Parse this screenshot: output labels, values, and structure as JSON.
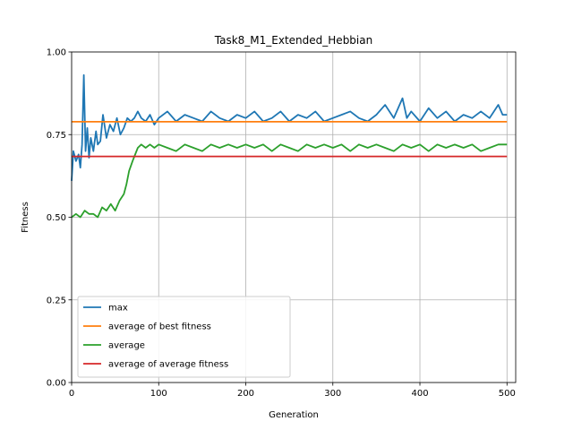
{
  "chart_data": {
    "type": "line",
    "title": "Task8_M1_Extended_Hebbian",
    "xlabel": "Generation",
    "ylabel": "Fitness",
    "xlim": [
      0,
      510
    ],
    "ylim": [
      0.0,
      1.0
    ],
    "x_ticks": [
      0,
      100,
      200,
      300,
      400,
      500
    ],
    "y_ticks": [
      0.0,
      0.25,
      0.5,
      0.75,
      1.0
    ],
    "x_tick_labels": [
      "0",
      "100",
      "200",
      "300",
      "400",
      "500"
    ],
    "y_tick_labels": [
      "0.00",
      "0.25",
      "0.50",
      "0.75",
      "1.00"
    ],
    "grid": true,
    "legend_position": "lower-left",
    "series": [
      {
        "name": "max",
        "color": "#1f77b4",
        "x": [
          0,
          2,
          5,
          8,
          10,
          12,
          14,
          16,
          18,
          20,
          22,
          25,
          28,
          30,
          33,
          36,
          40,
          44,
          48,
          52,
          56,
          60,
          64,
          68,
          72,
          76,
          80,
          85,
          90,
          95,
          100,
          110,
          120,
          130,
          140,
          150,
          160,
          170,
          180,
          190,
          200,
          210,
          220,
          230,
          240,
          250,
          260,
          270,
          280,
          290,
          300,
          310,
          320,
          330,
          340,
          350,
          360,
          370,
          380,
          385,
          390,
          400,
          410,
          420,
          430,
          440,
          450,
          460,
          470,
          480,
          490,
          495,
          500
        ],
        "values": [
          0.61,
          0.7,
          0.67,
          0.69,
          0.65,
          0.72,
          0.93,
          0.7,
          0.77,
          0.68,
          0.74,
          0.7,
          0.76,
          0.72,
          0.73,
          0.81,
          0.74,
          0.78,
          0.76,
          0.8,
          0.75,
          0.77,
          0.8,
          0.79,
          0.8,
          0.82,
          0.8,
          0.79,
          0.81,
          0.78,
          0.8,
          0.82,
          0.79,
          0.81,
          0.8,
          0.79,
          0.82,
          0.8,
          0.79,
          0.81,
          0.8,
          0.82,
          0.79,
          0.8,
          0.82,
          0.79,
          0.81,
          0.8,
          0.82,
          0.79,
          0.8,
          0.81,
          0.82,
          0.8,
          0.79,
          0.81,
          0.84,
          0.8,
          0.86,
          0.8,
          0.82,
          0.79,
          0.83,
          0.8,
          0.82,
          0.79,
          0.81,
          0.8,
          0.82,
          0.8,
          0.84,
          0.81,
          0.81
        ]
      },
      {
        "name": "average of best fitness",
        "color": "#ff7f0e",
        "x": [
          0,
          500
        ],
        "values": [
          0.789,
          0.789
        ]
      },
      {
        "name": "average",
        "color": "#2ca02c",
        "x": [
          0,
          5,
          10,
          15,
          20,
          25,
          30,
          35,
          40,
          45,
          50,
          55,
          60,
          63,
          66,
          70,
          73,
          76,
          80,
          85,
          90,
          95,
          100,
          110,
          120,
          130,
          140,
          150,
          160,
          170,
          180,
          190,
          200,
          210,
          220,
          230,
          240,
          250,
          260,
          270,
          280,
          290,
          300,
          310,
          320,
          330,
          340,
          350,
          360,
          370,
          380,
          390,
          400,
          410,
          420,
          430,
          440,
          450,
          460,
          470,
          480,
          490,
          500
        ],
        "values": [
          0.5,
          0.51,
          0.5,
          0.52,
          0.51,
          0.51,
          0.5,
          0.53,
          0.52,
          0.54,
          0.52,
          0.55,
          0.57,
          0.6,
          0.64,
          0.67,
          0.69,
          0.71,
          0.72,
          0.71,
          0.72,
          0.71,
          0.72,
          0.71,
          0.7,
          0.72,
          0.71,
          0.7,
          0.72,
          0.71,
          0.72,
          0.71,
          0.72,
          0.71,
          0.72,
          0.7,
          0.72,
          0.71,
          0.7,
          0.72,
          0.71,
          0.72,
          0.71,
          0.72,
          0.7,
          0.72,
          0.71,
          0.72,
          0.71,
          0.7,
          0.72,
          0.71,
          0.72,
          0.7,
          0.72,
          0.71,
          0.72,
          0.71,
          0.72,
          0.7,
          0.71,
          0.72,
          0.72
        ]
      },
      {
        "name": "average of average fitness",
        "color": "#d62728",
        "x": [
          0,
          500
        ],
        "values": [
          0.684,
          0.684
        ]
      }
    ]
  }
}
